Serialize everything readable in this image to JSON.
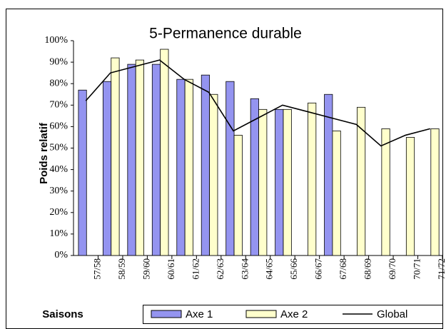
{
  "chart_data": {
    "type": "bar",
    "title": "5-Permanence durable",
    "ylabel": "Poids relatif",
    "xlabel": "Saisons",
    "categories": [
      "57/58",
      "58/59",
      "59/60",
      "60/61",
      "61/62",
      "62/63",
      "63/64",
      "64/65",
      "65/66",
      "66/67",
      "67/68",
      "68/69",
      "69/70",
      "70/71",
      "71/72"
    ],
    "series": [
      {
        "name": "Axe 1",
        "color": "#9494f0",
        "values": [
          77,
          81,
          89,
          89,
          82,
          84,
          81,
          73,
          68,
          null,
          75,
          null,
          null,
          null,
          null
        ]
      },
      {
        "name": "Axe 2",
        "color": "#ffffcc",
        "values": [
          null,
          92,
          91,
          96,
          82,
          75,
          56,
          68,
          68,
          71,
          58,
          69,
          59,
          55,
          59
        ]
      },
      {
        "name": "Global",
        "type": "line",
        "color": "#000000",
        "values": [
          72,
          85,
          88,
          91,
          82,
          76,
          58,
          64,
          70,
          67,
          64,
          61,
          51,
          56,
          59
        ]
      }
    ],
    "ylim": [
      0,
      100
    ],
    "yticks": [
      {
        "value": 0,
        "label": "0%"
      },
      {
        "value": 10,
        "label": "10%"
      },
      {
        "value": 20,
        "label": "20%"
      },
      {
        "value": 30,
        "label": "30%"
      },
      {
        "value": 40,
        "label": "40%"
      },
      {
        "value": 50,
        "label": "50%"
      },
      {
        "value": 60,
        "label": "60%"
      },
      {
        "value": 70,
        "label": "70%"
      },
      {
        "value": 80,
        "label": "80%"
      },
      {
        "value": 90,
        "label": "90%"
      },
      {
        "value": 100,
        "label": "100%"
      }
    ],
    "legend": "bottom"
  }
}
